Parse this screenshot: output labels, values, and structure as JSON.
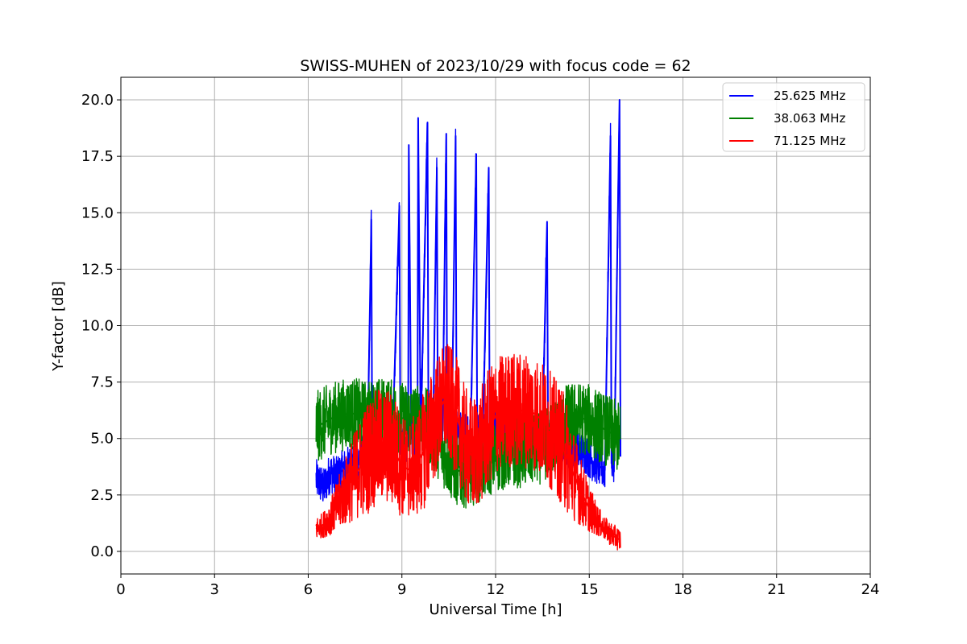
{
  "chart_data": {
    "type": "line",
    "title": "SWISS-MUHEN of 2023/10/29 with focus code = 62",
    "xlabel": "Universal Time [h]",
    "ylabel": "Y-factor [dB]",
    "xlim": [
      0,
      24
    ],
    "ylim": [
      -1,
      21
    ],
    "x_ticks": [
      0,
      3,
      6,
      9,
      12,
      15,
      18,
      21,
      24
    ],
    "y_ticks": [
      0.0,
      2.5,
      5.0,
      7.5,
      10.0,
      12.5,
      15.0,
      17.5,
      20.0
    ],
    "x_tick_labels": [
      "0",
      "3",
      "6",
      "9",
      "12",
      "15",
      "18",
      "21",
      "24"
    ],
    "y_tick_labels": [
      "0.0",
      "2.5",
      "5.0",
      "7.5",
      "10.0",
      "12.5",
      "15.0",
      "17.5",
      "20.0"
    ],
    "grid": true,
    "legend_position": "top-right",
    "series": [
      {
        "name": "25.625 MHz",
        "color": "#0000ff",
        "x": [
          6.25,
          6.4,
          6.5,
          6.7,
          6.9,
          7.1,
          7.3,
          7.5,
          7.7,
          7.9,
          8.02,
          8.05,
          8.1,
          8.3,
          8.5,
          8.7,
          8.92,
          8.95,
          9.0,
          9.2,
          9.22,
          9.3,
          9.5,
          9.52,
          9.6,
          9.82,
          9.85,
          10.0,
          10.12,
          10.15,
          10.3,
          10.42,
          10.45,
          10.6,
          10.72,
          10.75,
          11.0,
          11.2,
          11.38,
          11.41,
          11.6,
          11.78,
          11.81,
          12.0,
          12.3,
          12.6,
          12.9,
          13.2,
          13.5,
          13.65,
          13.68,
          13.9,
          14.1,
          14.3,
          14.5,
          14.7,
          14.9,
          15.1,
          15.3,
          15.5,
          15.68,
          15.71,
          15.8,
          15.97,
          16.0
        ],
        "y": [
          3.2,
          3.0,
          2.8,
          3.5,
          3.3,
          3.6,
          3.8,
          3.9,
          4.2,
          4.5,
          14.7,
          4.3,
          4.2,
          4.5,
          4.4,
          4.8,
          15.3,
          5.2,
          4.6,
          4.9,
          18.0,
          5.0,
          4.9,
          19.2,
          5.1,
          19.0,
          5.2,
          5.3,
          17.0,
          5.4,
          5.2,
          18.5,
          5.3,
          5.5,
          18.4,
          5.4,
          5.2,
          5.3,
          17.6,
          5.3,
          5.6,
          17.0,
          5.5,
          5.4,
          5.3,
          5.3,
          5.2,
          5.0,
          5.2,
          14.6,
          5.0,
          5.1,
          4.8,
          4.6,
          4.5,
          4.4,
          4.3,
          4.0,
          3.8,
          3.6,
          18.4,
          3.9,
          4.0,
          20.0,
          4.2
        ]
      },
      {
        "name": "38.063 MHz",
        "color": "#008000",
        "x": [
          6.25,
          6.5,
          6.75,
          7.0,
          7.25,
          7.5,
          7.75,
          8.0,
          8.25,
          8.5,
          8.75,
          9.0,
          9.25,
          9.5,
          9.75,
          10.0,
          10.25,
          10.5,
          10.75,
          11.0,
          11.25,
          11.5,
          11.75,
          12.0,
          12.25,
          12.5,
          12.75,
          13.0,
          13.25,
          13.5,
          13.75,
          14.0,
          14.25,
          14.5,
          14.75,
          15.0,
          15.25,
          15.5,
          15.75,
          16.0
        ],
        "y": [
          5.5,
          5.7,
          5.9,
          6.0,
          6.1,
          6.1,
          6.0,
          6.0,
          6.1,
          6.1,
          6.0,
          5.9,
          5.9,
          5.8,
          5.7,
          5.2,
          4.6,
          4.0,
          3.6,
          3.5,
          3.6,
          3.8,
          4.0,
          4.2,
          4.3,
          4.4,
          4.4,
          4.4,
          4.5,
          4.6,
          4.9,
          5.3,
          5.8,
          5.9,
          5.9,
          5.8,
          5.6,
          5.4,
          5.2,
          5.0
        ]
      },
      {
        "name": "71.125 MHz",
        "color": "#ff0000",
        "x": [
          6.25,
          6.5,
          6.75,
          7.0,
          7.25,
          7.5,
          7.75,
          8.0,
          8.25,
          8.5,
          8.75,
          9.0,
          9.25,
          9.5,
          9.75,
          10.0,
          10.25,
          10.4,
          10.5,
          10.75,
          11.0,
          11.25,
          11.5,
          11.75,
          12.0,
          12.25,
          12.5,
          12.75,
          13.0,
          13.25,
          13.5,
          13.75,
          14.0,
          14.25,
          14.5,
          14.75,
          15.0,
          15.25,
          15.5,
          15.75,
          16.0
        ],
        "y": [
          1.0,
          1.2,
          1.6,
          2.2,
          2.8,
          3.4,
          3.9,
          4.4,
          4.6,
          4.7,
          4.4,
          3.8,
          3.6,
          3.9,
          4.6,
          5.6,
          6.4,
          6.8,
          6.6,
          6.0,
          4.8,
          4.2,
          4.6,
          5.4,
          6.0,
          6.2,
          6.3,
          6.2,
          6.3,
          6.1,
          5.8,
          5.4,
          4.9,
          4.3,
          3.4,
          2.6,
          1.9,
          1.4,
          1.0,
          0.7,
          0.5
        ]
      }
    ]
  }
}
